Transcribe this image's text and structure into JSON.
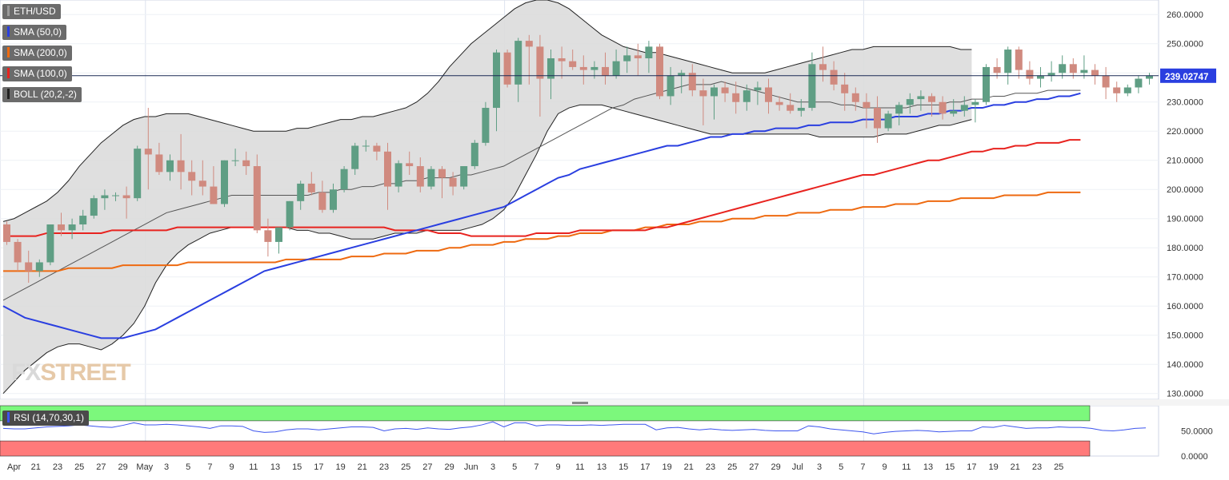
{
  "indicators": {
    "pair": "ETH/USD",
    "sma50": "SMA (50,0)",
    "sma200": "SMA (200,0)",
    "sma100": "SMA (100,0)",
    "boll": "BOLL (20,2,-2)",
    "rsi": "RSI (14,70,30,1)"
  },
  "watermark": {
    "left": "FX",
    "right": "STREET"
  },
  "colors": {
    "up": "#5f9e84",
    "down": "#d08a7f",
    "sma50": "#2a3fe0",
    "sma100": "#e8231f",
    "sma200": "#ee6a10",
    "boll_fill": "#dcdcdc",
    "rsi_line": "#3d55ee",
    "rsi_over": "#7cf87c",
    "rsi_under": "#ff7a7a"
  },
  "price_label": "239.02747",
  "chart_data": {
    "type": "candlestick",
    "title": "ETH/USD",
    "ylim": [
      128,
      265
    ],
    "y_ticks": [
      "130.0000",
      "140.0000",
      "150.0000",
      "160.0000",
      "170.0000",
      "180.0000",
      "190.0000",
      "200.0000",
      "210.0000",
      "220.0000",
      "230.0000",
      "240.0000",
      "250.0000",
      "260.0000"
    ],
    "x_tick_labels": [
      "Apr",
      "21",
      "23",
      "25",
      "27",
      "29",
      "May",
      "3",
      "5",
      "7",
      "9",
      "11",
      "13",
      "15",
      "17",
      "19",
      "21",
      "23",
      "25",
      "27",
      "29",
      "Jun",
      "3",
      "5",
      "7",
      "9",
      "11",
      "13",
      "15",
      "17",
      "19",
      "21",
      "23",
      "25",
      "27",
      "29",
      "Jul",
      "3",
      "5",
      "7",
      "9",
      "11",
      "13",
      "15",
      "17",
      "19",
      "21",
      "23",
      "25"
    ],
    "current_price": 239.02747,
    "candles": [
      [
        188,
        189,
        181,
        182
      ],
      [
        182,
        183,
        172,
        175
      ],
      [
        175,
        179,
        168,
        172
      ],
      [
        172,
        176,
        170,
        175
      ],
      [
        175,
        188,
        174,
        188
      ],
      [
        188,
        192,
        184,
        186
      ],
      [
        186,
        190,
        183,
        188
      ],
      [
        188,
        193,
        186,
        191
      ],
      [
        191,
        198,
        190,
        197
      ],
      [
        197,
        200,
        193,
        198
      ],
      [
        198,
        199,
        196,
        198
      ],
      [
        198,
        201,
        190,
        197
      ],
      [
        197,
        215,
        196,
        214
      ],
      [
        214,
        228,
        200,
        212
      ],
      [
        212,
        216,
        205,
        206
      ],
      [
        206,
        212,
        203,
        210
      ],
      [
        210,
        219,
        200,
        206
      ],
      [
        206,
        210,
        198,
        203
      ],
      [
        203,
        210,
        198,
        201
      ],
      [
        201,
        208,
        195,
        195
      ],
      [
        195,
        210,
        194,
        210
      ],
      [
        210,
        214,
        208,
        210
      ],
      [
        210,
        213,
        205,
        208
      ],
      [
        208,
        212,
        185,
        186
      ],
      [
        186,
        190,
        177,
        182
      ],
      [
        182,
        187,
        178,
        187
      ],
      [
        187,
        196,
        186,
        196
      ],
      [
        196,
        203,
        193,
        202
      ],
      [
        202,
        206,
        198,
        199
      ],
      [
        199,
        203,
        192,
        193
      ],
      [
        193,
        202,
        192,
        200
      ],
      [
        200,
        208,
        199,
        207
      ],
      [
        207,
        216,
        205,
        215
      ],
      [
        215,
        217,
        213,
        215
      ],
      [
        215,
        216,
        210,
        213
      ],
      [
        213,
        216,
        193,
        201
      ],
      [
        201,
        210,
        199,
        209
      ],
      [
        209,
        213,
        205,
        208
      ],
      [
        208,
        211,
        199,
        201
      ],
      [
        201,
        208,
        200,
        207
      ],
      [
        207,
        208,
        197,
        204
      ],
      [
        204,
        206,
        198,
        201
      ],
      [
        201,
        207,
        200,
        208
      ],
      [
        208,
        217,
        207,
        216
      ],
      [
        216,
        230,
        215,
        228
      ],
      [
        228,
        248,
        220,
        247
      ],
      [
        247,
        248,
        235,
        236
      ],
      [
        236,
        252,
        230,
        251
      ],
      [
        251,
        253,
        236,
        249
      ],
      [
        249,
        253,
        225,
        238
      ],
      [
        238,
        248,
        231,
        245
      ],
      [
        245,
        249,
        238,
        244
      ],
      [
        244,
        248,
        241,
        242
      ],
      [
        242,
        246,
        236,
        241
      ],
      [
        241,
        244,
        238,
        242
      ],
      [
        242,
        247,
        236,
        239
      ],
      [
        239,
        248,
        238,
        244
      ],
      [
        244,
        249,
        240,
        246
      ],
      [
        246,
        250,
        239,
        245
      ],
      [
        245,
        251,
        240,
        249
      ],
      [
        249,
        250,
        231,
        232
      ],
      [
        232,
        242,
        229,
        239
      ],
      [
        239,
        241,
        233,
        240
      ],
      [
        240,
        243,
        232,
        234
      ],
      [
        234,
        238,
        222,
        232
      ],
      [
        232,
        236,
        224,
        235
      ],
      [
        235,
        237,
        230,
        233
      ],
      [
        233,
        237,
        226,
        230
      ],
      [
        230,
        236,
        227,
        234
      ],
      [
        234,
        237,
        229,
        235
      ],
      [
        235,
        238,
        226,
        230
      ],
      [
        230,
        232,
        227,
        229
      ],
      [
        229,
        233,
        226,
        227
      ],
      [
        227,
        231,
        225,
        228
      ],
      [
        228,
        247,
        227,
        243
      ],
      [
        243,
        249,
        237,
        241
      ],
      [
        241,
        244,
        234,
        236
      ],
      [
        236,
        240,
        227,
        233
      ],
      [
        233,
        235,
        227,
        230
      ],
      [
        230,
        233,
        221,
        228
      ],
      [
        228,
        232,
        216,
        221
      ],
      [
        221,
        227,
        220,
        226
      ],
      [
        226,
        230,
        222,
        229
      ],
      [
        229,
        233,
        226,
        231
      ],
      [
        231,
        234,
        227,
        232
      ],
      [
        232,
        233,
        225,
        230
      ],
      [
        230,
        232,
        224,
        226
      ],
      [
        226,
        231,
        225,
        227
      ],
      [
        227,
        232,
        225,
        229
      ],
      [
        229,
        231,
        223,
        230
      ],
      [
        230,
        243,
        229,
        242
      ],
      [
        242,
        245,
        238,
        240
      ],
      [
        240,
        249,
        236,
        248
      ],
      [
        248,
        249,
        238,
        241
      ],
      [
        241,
        244,
        236,
        238
      ],
      [
        238,
        242,
        235,
        239
      ],
      [
        239,
        244,
        237,
        240
      ],
      [
        240,
        246,
        238,
        243
      ],
      [
        243,
        245,
        238,
        240
      ],
      [
        240,
        246,
        238,
        241
      ],
      [
        241,
        243,
        236,
        239
      ],
      [
        239,
        242,
        231,
        235
      ],
      [
        235,
        237,
        230,
        233
      ],
      [
        233,
        236,
        232,
        235
      ],
      [
        235,
        239,
        233,
        238
      ],
      [
        238,
        240,
        236,
        239
      ]
    ],
    "sma50": [
      160,
      158,
      156,
      155,
      154,
      153,
      152,
      151,
      150,
      149,
      149,
      149,
      150,
      151,
      152,
      154,
      156,
      158,
      160,
      162,
      164,
      166,
      168,
      170,
      172,
      173,
      174,
      175,
      176,
      177,
      178,
      179,
      180,
      181,
      182,
      183,
      184,
      185,
      186,
      187,
      188,
      189,
      190,
      191,
      192,
      193,
      194,
      196,
      198,
      200,
      202,
      204,
      205,
      207,
      208,
      209,
      210,
      211,
      212,
      213,
      214,
      215,
      215,
      216,
      217,
      218,
      218,
      219,
      219,
      220,
      220,
      221,
      221,
      221,
      222,
      222,
      223,
      223,
      223,
      224,
      224,
      224,
      225,
      225,
      225,
      226,
      226,
      227,
      227,
      228,
      228,
      229,
      229,
      230,
      230,
      231,
      231,
      232,
      232,
      233
    ],
    "sma100": [
      184,
      184,
      184,
      184,
      185,
      185,
      185,
      185,
      185,
      185,
      186,
      186,
      186,
      186,
      186,
      186,
      187,
      187,
      187,
      187,
      187,
      187,
      187,
      187,
      187,
      187,
      187,
      187,
      187,
      187,
      187,
      187,
      187,
      187,
      187,
      187,
      186,
      186,
      186,
      186,
      185,
      185,
      185,
      184,
      184,
      184,
      184,
      184,
      184,
      185,
      185,
      185,
      185,
      186,
      186,
      186,
      186,
      186,
      186,
      186,
      187,
      187,
      188,
      189,
      190,
      191,
      192,
      193,
      194,
      195,
      196,
      197,
      198,
      199,
      200,
      201,
      202,
      203,
      204,
      205,
      205,
      206,
      207,
      208,
      209,
      210,
      210,
      211,
      212,
      213,
      213,
      214,
      214,
      215,
      215,
      216,
      216,
      216,
      217,
      217
    ],
    "sma200": [
      172,
      172,
      172,
      172,
      172,
      172,
      173,
      173,
      173,
      173,
      173,
      174,
      174,
      174,
      174,
      174,
      174,
      175,
      175,
      175,
      175,
      175,
      175,
      175,
      175,
      175,
      176,
      176,
      176,
      176,
      176,
      176,
      177,
      177,
      177,
      178,
      178,
      178,
      179,
      179,
      179,
      180,
      180,
      181,
      181,
      181,
      182,
      182,
      183,
      183,
      183,
      184,
      184,
      185,
      185,
      185,
      186,
      186,
      186,
      187,
      187,
      188,
      188,
      188,
      189,
      189,
      189,
      190,
      190,
      190,
      191,
      191,
      191,
      192,
      192,
      192,
      193,
      193,
      193,
      194,
      194,
      194,
      195,
      195,
      195,
      196,
      196,
      196,
      197,
      197,
      197,
      197,
      198,
      198,
      198,
      198,
      199,
      199,
      199,
      199
    ],
    "boll_mid": [
      162,
      164,
      166,
      168,
      170,
      172,
      174,
      176,
      178,
      180,
      182,
      184,
      186,
      188,
      190,
      192,
      193,
      194,
      195,
      196,
      197,
      198,
      198,
      198,
      198,
      198,
      198,
      198,
      198,
      199,
      199,
      200,
      200,
      201,
      201,
      202,
      202,
      203,
      203,
      204,
      204,
      204,
      205,
      205,
      206,
      207,
      208,
      210,
      212,
      214,
      216,
      218,
      220,
      222,
      224,
      226,
      228,
      229,
      231,
      232,
      233,
      234,
      235,
      236,
      236,
      236,
      237,
      236,
      235,
      234,
      233,
      232,
      231,
      230,
      230,
      230,
      230,
      229,
      229,
      228,
      228,
      228,
      228,
      228,
      229,
      229,
      229,
      230,
      230,
      231,
      231,
      232,
      232,
      233,
      233,
      233,
      234,
      234,
      234,
      234
    ],
    "boll_upper": [
      189,
      190,
      192,
      194,
      196,
      199,
      203,
      208,
      212,
      216,
      219,
      222,
      224,
      225,
      225,
      226,
      226,
      226,
      225,
      224,
      223,
      222,
      221,
      220,
      220,
      220,
      220,
      221,
      221,
      222,
      223,
      224,
      224,
      225,
      225,
      226,
      227,
      228,
      230,
      233,
      237,
      242,
      246,
      250,
      253,
      256,
      259,
      262,
      264,
      265,
      265,
      264,
      262,
      259,
      256,
      253,
      251,
      249,
      248,
      247,
      247,
      246,
      245,
      244,
      243,
      242,
      241,
      240,
      240,
      240,
      240,
      241,
      242,
      243,
      244,
      245,
      246,
      247,
      248,
      248,
      249,
      249,
      249,
      249,
      249,
      249,
      249,
      249,
      248,
      248
    ],
    "boll_lower": [
      130,
      134,
      138,
      141,
      144,
      146,
      147,
      147,
      146,
      145,
      147,
      150,
      154,
      160,
      168,
      174,
      178,
      181,
      183,
      185,
      186,
      187,
      187,
      187,
      187,
      187,
      187,
      186,
      186,
      185,
      185,
      184,
      183,
      183,
      183,
      184,
      185,
      185,
      185,
      186,
      186,
      186,
      186,
      187,
      188,
      190,
      193,
      198,
      205,
      212,
      220,
      226,
      228,
      229,
      229,
      229,
      228,
      227,
      226,
      225,
      224,
      223,
      222,
      221,
      220,
      219,
      219,
      219,
      219,
      219,
      219,
      219,
      219,
      219,
      219,
      218,
      218,
      218,
      218,
      218,
      218,
      219,
      219,
      219,
      220,
      221,
      222,
      222,
      223,
      224
    ],
    "rsi": {
      "ylim": [
        0,
        100
      ],
      "overbought": 70,
      "oversold": 30,
      "y_ticks": [
        "50.0000",
        "0.0000"
      ],
      "values": [
        55,
        54,
        54,
        56,
        58,
        59,
        60,
        62,
        60,
        58,
        57,
        61,
        66,
        62,
        62,
        63,
        62,
        60,
        58,
        55,
        60,
        60,
        59,
        50,
        47,
        48,
        52,
        54,
        54,
        52,
        54,
        56,
        58,
        58,
        57,
        50,
        54,
        55,
        53,
        56,
        54,
        53,
        56,
        58,
        62,
        68,
        58,
        66,
        66,
        60,
        62,
        62,
        61,
        61,
        62,
        61,
        62,
        63,
        63,
        63,
        52,
        56,
        57,
        54,
        52,
        54,
        52,
        51,
        52,
        53,
        51,
        50,
        50,
        50,
        60,
        58,
        54,
        52,
        50,
        48,
        44,
        47,
        49,
        50,
        51,
        50,
        48,
        49,
        50,
        50,
        58,
        57,
        61,
        58,
        55,
        56,
        56,
        58,
        57,
        57,
        55,
        51,
        50,
        52,
        55,
        56
      ]
    }
  }
}
